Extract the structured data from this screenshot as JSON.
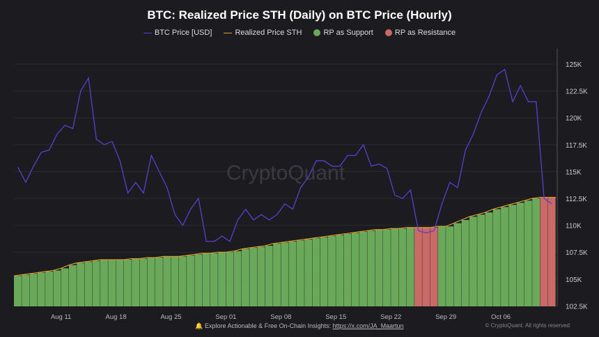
{
  "chart_data": {
    "type": "bar+line",
    "title": "BTC: Realized Price STH (Daily) on BTC Price (Hourly)",
    "legend": [
      "BTC Price [USD]",
      "Realized Price STH",
      "RP as Support",
      "RP as Resistance"
    ],
    "legend_position": "top",
    "colors": {
      "price": "#5b3fd1",
      "rp": "#e0a030",
      "support": "#6aa85a",
      "resistance": "#c96a66"
    },
    "start_date": "2025-08-05",
    "x_ticks": [
      "Aug 11",
      "Aug 18",
      "Aug 25",
      "Sep 01",
      "Sep 08",
      "Sep 15",
      "Sep 22",
      "Sep 29",
      "Oct 06"
    ],
    "y_ticks": [
      "102.5K",
      "105K",
      "107.5K",
      "110K",
      "112.5K",
      "115K",
      "117.5K",
      "120K",
      "122.5K",
      "125K"
    ],
    "ylim": [
      102500,
      126000
    ],
    "btc_price": [
      115.4,
      114,
      115.5,
      116.8,
      117,
      118.5,
      119.3,
      119,
      122.5,
      123.7,
      118,
      117.5,
      117.8,
      116,
      113,
      114,
      113,
      116.5,
      115,
      113.5,
      111,
      110,
      111.5,
      112.5,
      108.5,
      108.5,
      109,
      108.5,
      110.5,
      111.5,
      110.5,
      111,
      110.5,
      111,
      112,
      111.5,
      113.5,
      114.5,
      116,
      116,
      115.5,
      115.5,
      116.5,
      116.5,
      117.5,
      115.5,
      115.7,
      115.3,
      112.8,
      112.5,
      113.3,
      109.5,
      109.3,
      109.5,
      112,
      114,
      113.5,
      117,
      118.5,
      120.5,
      122,
      124,
      124.5,
      121.5,
      123,
      121.5,
      121.5,
      112.5,
      112
    ],
    "realized_price_sth": [
      105.3,
      105.4,
      105.5,
      105.6,
      105.7,
      105.8,
      106,
      106.3,
      106.5,
      106.6,
      106.7,
      106.8,
      106.8,
      106.8,
      106.8,
      106.9,
      106.9,
      107,
      107,
      107.1,
      107.1,
      107.1,
      107.2,
      107.3,
      107.4,
      107.4,
      107.5,
      107.5,
      107.6,
      107.8,
      107.9,
      108,
      108.1,
      108.3,
      108.4,
      108.5,
      108.6,
      108.7,
      108.8,
      108.9,
      109,
      109.1,
      109.2,
      109.3,
      109.4,
      109.5,
      109.6,
      109.6,
      109.7,
      109.7,
      109.8,
      109.8,
      109.8,
      109.8,
      109.9,
      109.9,
      110.2,
      110.5,
      110.8,
      111,
      111.2,
      111.5,
      111.7,
      111.9,
      112.1,
      112.3,
      112.5,
      112.6,
      112.6
    ],
    "price_unit": "thousand USD",
    "watermark": "CryptoQuant"
  },
  "footer": {
    "text": "Explore Actionable & Free On-Chain Insights: ",
    "link": "https://x.com/JA_Maartun",
    "copyright": "© CryptoQuant. All rights reserved"
  }
}
